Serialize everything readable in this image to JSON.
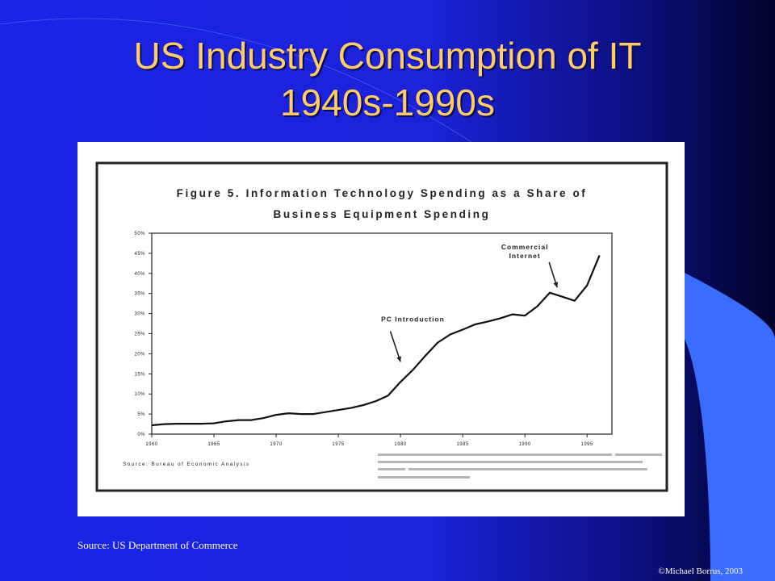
{
  "slide": {
    "title_line1": "US Industry Consumption of IT",
    "title_line2": "1940s-1990s",
    "source": "Source: US Department of Commerce",
    "copyright": "©Michael Borrus, 2003",
    "colors": {
      "title": "#ffcc66",
      "background": "#1c22d8",
      "accent": "#3366ff"
    }
  },
  "chart_data": {
    "type": "line",
    "title_line1": "Figure 5.  Information Technology Spending as a Share of",
    "title_line2": "Business Equipment Spending",
    "source_note": "Source:  Bureau of Economic Analysis",
    "xlabel": "",
    "ylabel": "",
    "xlim": [
      1960,
      1997
    ],
    "ylim": [
      0,
      50
    ],
    "x_ticks": [
      1960,
      1965,
      1970,
      1975,
      1980,
      1985,
      1990,
      1995
    ],
    "x_tick_labels": [
      "1960",
      "1965",
      "1970",
      "1975",
      "1980",
      "1985",
      "1990",
      "1995"
    ],
    "y_ticks": [
      0,
      5,
      10,
      15,
      20,
      25,
      30,
      35,
      40,
      45,
      50
    ],
    "y_tick_labels": [
      "0%",
      "5%",
      "10%",
      "15%",
      "20%",
      "25%",
      "30%",
      "35%",
      "40%",
      "45%",
      "50%"
    ],
    "grid": false,
    "series": [
      {
        "name": "",
        "x": [
          1960,
          1961,
          1962,
          1963,
          1964,
          1965,
          1966,
          1967,
          1968,
          1969,
          1970,
          1971,
          1972,
          1973,
          1974,
          1975,
          1976,
          1977,
          1978,
          1979,
          1980,
          1981,
          1982,
          1983,
          1984,
          1985,
          1986,
          1987,
          1988,
          1989,
          1990,
          1991,
          1992,
          1993,
          1994,
          1995,
          1996
        ],
        "values": [
          2.2,
          2.5,
          2.6,
          2.6,
          2.6,
          2.7,
          3.2,
          3.5,
          3.5,
          4.0,
          4.8,
          5.2,
          5.0,
          5.0,
          5.5,
          6.0,
          6.5,
          7.2,
          8.2,
          9.6,
          13.0,
          16.0,
          19.5,
          22.8,
          24.8,
          26.0,
          27.3,
          28.0,
          28.8,
          29.8,
          29.5,
          31.8,
          35.2,
          34.2,
          33.2,
          37.0,
          44.5
        ]
      }
    ],
    "annotations": [
      {
        "text": "PC Introduction",
        "x": 1981,
        "y": 28,
        "arrow_to": [
          1980,
          18
        ]
      },
      {
        "text_line1": "Commercial",
        "text_line2": "Internet",
        "x": 1990,
        "y": 46,
        "arrow_to": [
          1992.6,
          36.5
        ]
      }
    ]
  }
}
